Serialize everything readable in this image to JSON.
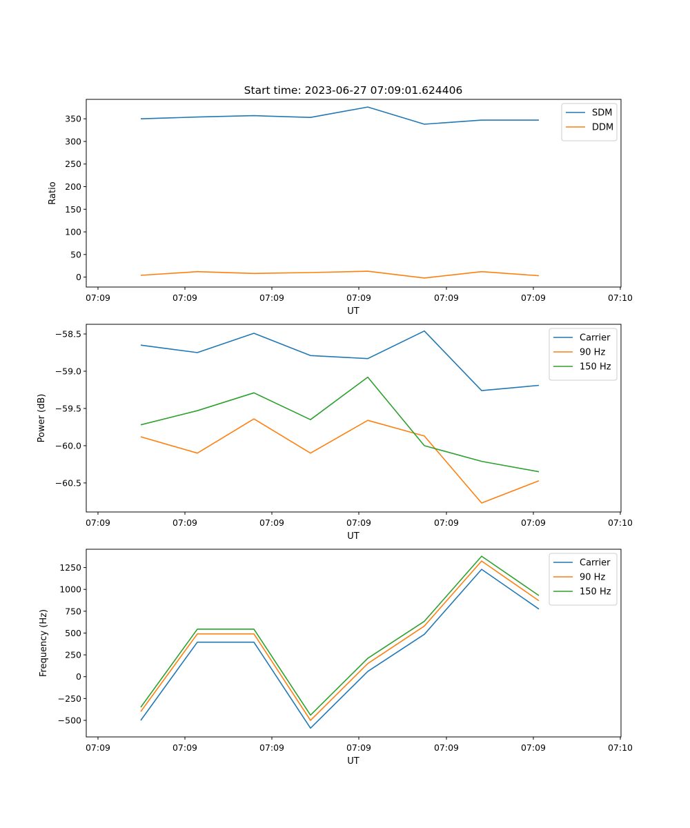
{
  "chart_data": [
    {
      "type": "line",
      "title": "Start time: 2023-06-27 07:09:01.624406",
      "xlabel": "UT",
      "ylabel": "Ratio",
      "x_tick_labels": [
        "07:09",
        "07:09",
        "07:09",
        "07:09",
        "07:09",
        "07:09",
        "07:10"
      ],
      "y_ticks": [
        0,
        50,
        100,
        150,
        200,
        250,
        300,
        350
      ],
      "ylim": [
        -22,
        393
      ],
      "legend": "top-right",
      "grid": false,
      "series": [
        {
          "name": "SDM",
          "color": "#1f77b4",
          "values": [
            350,
            354,
            357,
            353,
            376,
            338,
            347,
            347
          ]
        },
        {
          "name": "DDM",
          "color": "#ff7f0e",
          "values": [
            4,
            12,
            8,
            10,
            13,
            -2,
            12,
            3
          ]
        }
      ]
    },
    {
      "type": "line",
      "title": "",
      "xlabel": "UT",
      "ylabel": "Power (dB)",
      "x_tick_labels": [
        "07:09",
        "07:09",
        "07:09",
        "07:09",
        "07:09",
        "07:09",
        "07:10"
      ],
      "y_ticks": [
        -60.5,
        -60.0,
        -59.5,
        -59.0,
        -58.5
      ],
      "y_tick_labels": [
        "−60.5",
        "−60.0",
        "−59.5",
        "−59.0",
        "−58.5"
      ],
      "ylim": [
        -60.89,
        -58.37
      ],
      "legend": "top-right",
      "grid": false,
      "series": [
        {
          "name": "Carrier",
          "color": "#1f77b4",
          "values": [
            -58.65,
            -58.75,
            -58.49,
            -58.79,
            -58.83,
            -58.46,
            -59.26,
            -59.19
          ]
        },
        {
          "name": "90 Hz",
          "color": "#ff7f0e",
          "values": [
            -59.88,
            -60.1,
            -59.64,
            -60.1,
            -59.66,
            -59.87,
            -60.77,
            -60.47
          ]
        },
        {
          "name": "150 Hz",
          "color": "#2ca02c",
          "values": [
            -59.72,
            -59.53,
            -59.29,
            -59.65,
            -59.08,
            -60.0,
            -60.21,
            -60.35
          ]
        }
      ]
    },
    {
      "type": "line",
      "title": "",
      "xlabel": "UT",
      "ylabel": "Frequency (Hz)",
      "x_tick_labels": [
        "07:09",
        "07:09",
        "07:09",
        "07:09",
        "07:09",
        "07:09",
        "07:10"
      ],
      "y_ticks": [
        -500,
        -250,
        0,
        250,
        500,
        750,
        1000,
        1250
      ],
      "y_tick_labels": [
        "−500",
        "−250",
        "0",
        "250",
        "500",
        "750",
        "1000",
        "1250"
      ],
      "ylim": [
        -690,
        1460
      ],
      "legend": "top-right",
      "grid": false,
      "series": [
        {
          "name": "Carrier",
          "color": "#1f77b4",
          "values": [
            -500,
            395,
            395,
            -590,
            60,
            485,
            1230,
            775
          ]
        },
        {
          "name": "90 Hz",
          "color": "#ff7f0e",
          "values": [
            -400,
            490,
            490,
            -500,
            150,
            580,
            1325,
            870
          ]
        },
        {
          "name": "150 Hz",
          "color": "#2ca02c",
          "values": [
            -350,
            545,
            545,
            -440,
            210,
            635,
            1380,
            930
          ]
        }
      ]
    }
  ]
}
